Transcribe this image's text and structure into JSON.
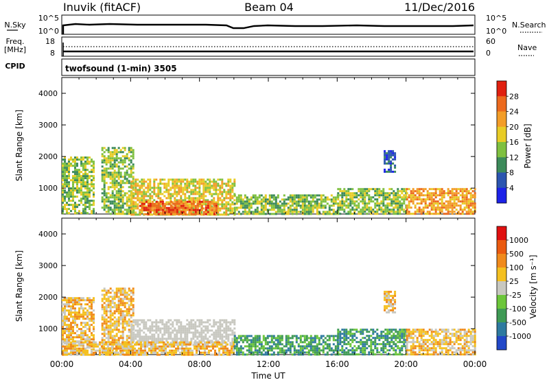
{
  "header": {
    "station": "Inuvik (fitACF)",
    "beam": "Beam 04",
    "date": "11/Dec/2016"
  },
  "strips": {
    "nsky_label": "N.Sky",
    "nsky_ticks": [
      "10^5",
      "10^0"
    ],
    "nsearch_label": "N.Search",
    "nsearch_ticks": [
      "10^5",
      "10^0"
    ],
    "freq_label_line1": "Freq.",
    "freq_label_line2": "[MHz]",
    "freq_ticks": [
      "18",
      "8"
    ],
    "nave_label": "Nave",
    "nave_ticks": [
      "60",
      "0"
    ],
    "cpid_label": "CPID",
    "cpid_text": "twofsound (1-min) 3505"
  },
  "panels": {
    "ylabel": "Slant Range [km]",
    "xlabel": "Time UT",
    "power_cbar_label": "Power [dB]",
    "velocity_cbar_label": "Velocity [m s⁻¹]"
  },
  "chart_data": [
    {
      "type": "heatmap",
      "name": "power",
      "x_unit": "UT",
      "x_range": [
        "00:00",
        "24:00"
      ],
      "x_ticks": [
        "00:00",
        "04:00",
        "08:00",
        "12:00",
        "16:00",
        "20:00",
        "00:00"
      ],
      "y_range": [
        180,
        4500
      ],
      "y_ticks": [
        1000,
        2000,
        3000,
        4000
      ],
      "colorbar": {
        "label": "Power [dB]",
        "ticks": [
          4,
          8,
          12,
          16,
          20,
          24,
          28
        ],
        "colors": [
          "#1c22e8",
          "#2b55b0",
          "#3c8a5a",
          "#7fc040",
          "#e8cc26",
          "#f39d28",
          "#ec6a1e",
          "#e02010"
        ]
      },
      "features": [
        {
          "t_start": 0.0,
          "t_end": 1.8,
          "r_min": 180,
          "r_max": 2000,
          "level": 16
        },
        {
          "t_start": 2.3,
          "t_end": 4.2,
          "r_min": 180,
          "r_max": 2300,
          "level": 16
        },
        {
          "t_start": 4.0,
          "t_end": 10.0,
          "r_min": 180,
          "r_max": 1300,
          "level": 20
        },
        {
          "t_start": 4.5,
          "t_end": 9.0,
          "r_min": 180,
          "r_max": 600,
          "level": 28
        },
        {
          "t_start": 10.0,
          "t_end": 16.0,
          "r_min": 180,
          "r_max": 800,
          "level": 16
        },
        {
          "t_start": 16.0,
          "t_end": 20.0,
          "r_min": 180,
          "r_max": 1000,
          "level": 16
        },
        {
          "t_start": 18.7,
          "t_end": 19.4,
          "r_min": 1500,
          "r_max": 2200,
          "level": 8
        },
        {
          "t_start": 20.0,
          "t_end": 24.0,
          "r_min": 180,
          "r_max": 1000,
          "level": 24
        }
      ]
    },
    {
      "type": "heatmap",
      "name": "velocity",
      "x_unit": "UT",
      "x_range": [
        "00:00",
        "24:00"
      ],
      "x_ticks": [
        "00:00",
        "04:00",
        "08:00",
        "12:00",
        "16:00",
        "20:00",
        "00:00"
      ],
      "y_range": [
        180,
        4500
      ],
      "y_ticks": [
        1000,
        2000,
        3000,
        4000
      ],
      "colorbar": {
        "label": "Velocity [m s⁻¹]",
        "ticks": [
          1000,
          500,
          100,
          25,
          -25,
          -100,
          -500,
          -1000
        ],
        "colors": [
          "#2248c8",
          "#2e7aa0",
          "#3f9a55",
          "#6cc63a",
          "#c8c8c0",
          "#f4c020",
          "#f08a1c",
          "#ea5a10",
          "#e01010"
        ]
      },
      "features": [
        {
          "t_start": 0.0,
          "t_end": 1.8,
          "r_min": 180,
          "r_max": 2000,
          "level": -100
        },
        {
          "t_start": 2.3,
          "t_end": 4.2,
          "r_min": 180,
          "r_max": 2300,
          "level": -100
        },
        {
          "t_start": 4.0,
          "t_end": 10.0,
          "r_min": 500,
          "r_max": 1300,
          "level": 0
        },
        {
          "t_start": 0.0,
          "t_end": 10.0,
          "r_min": 180,
          "r_max": 600,
          "level": -100
        },
        {
          "t_start": 10.0,
          "t_end": 16.0,
          "r_min": 180,
          "r_max": 800,
          "level": 100
        },
        {
          "t_start": 16.0,
          "t_end": 20.0,
          "r_min": 180,
          "r_max": 1000,
          "level": 100
        },
        {
          "t_start": 18.7,
          "t_end": 19.4,
          "r_min": 1500,
          "r_max": 2200,
          "level": -100
        },
        {
          "t_start": 20.0,
          "t_end": 24.0,
          "r_min": 180,
          "r_max": 1000,
          "level": -100
        }
      ]
    }
  ]
}
